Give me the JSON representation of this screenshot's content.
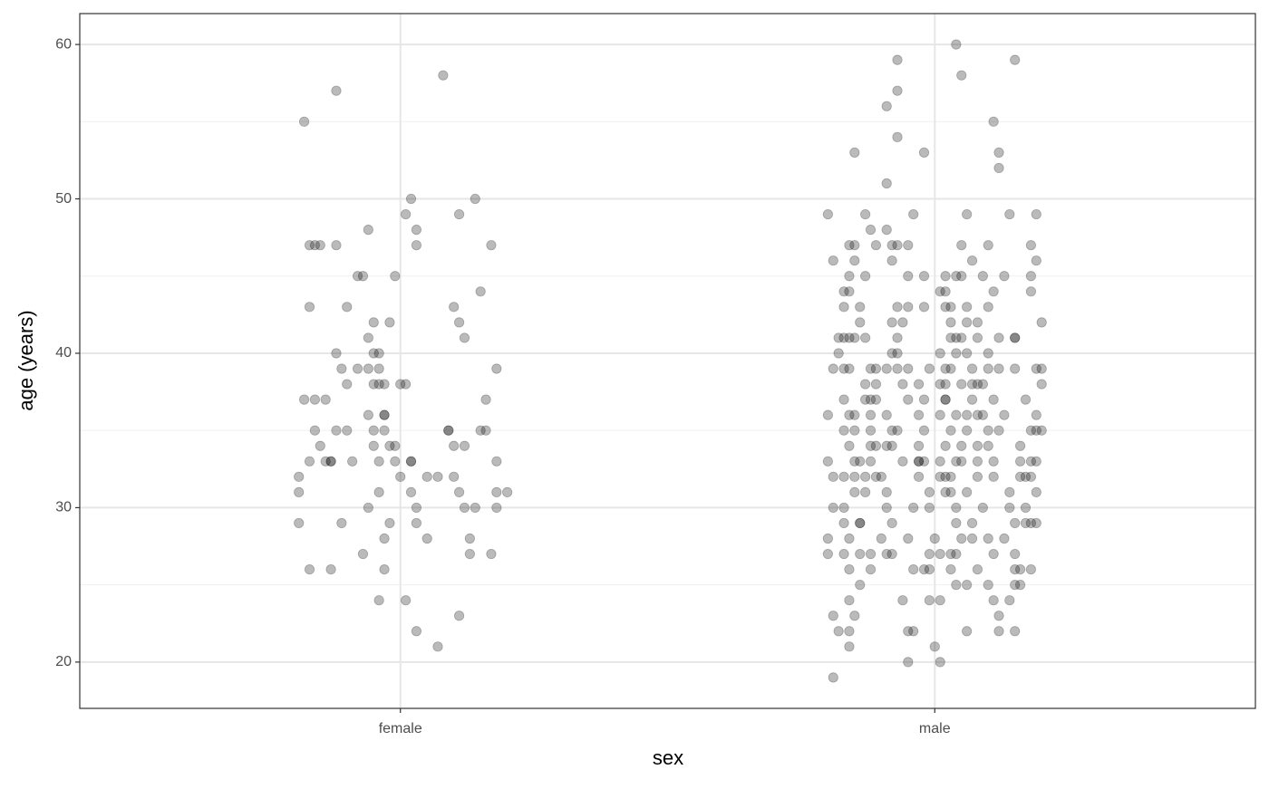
{
  "chart_data": {
    "type": "scatter",
    "x_label": "sex",
    "y_label": "age (years)",
    "xlim": [
      0.4,
      2.6
    ],
    "xticks": [
      {
        "value": 1,
        "label": "female"
      },
      {
        "value": 2,
        "label": "male"
      }
    ],
    "ylim": [
      17,
      62
    ],
    "yticks": [
      20,
      30,
      40,
      50,
      60
    ],
    "y_minor_ticks": [
      25,
      35,
      45,
      55
    ],
    "grid": true,
    "color": "#000000",
    "opacity": 0.27,
    "x": [
      0.82,
      0.88,
      1.08,
      0.83,
      0.84,
      0.85,
      0.88,
      0.83,
      0.9,
      0.94,
      0.92,
      0.93,
      0.99,
      1.02,
      1.01,
      1.03,
      1.03,
      1.14,
      1.11,
      1.17,
      1.15,
      1.1,
      1.11,
      1.12,
      0.95,
      0.98,
      0.94,
      0.88,
      0.95,
      0.96,
      0.89,
      0.92,
      0.94,
      0.96,
      1.18,
      0.82,
      0.84,
      0.86,
      0.9,
      0.95,
      0.96,
      0.97,
      1.0,
      1.01,
      1.16,
      0.94,
      0.97,
      0.97,
      0.84,
      0.88,
      0.9,
      0.95,
      0.97,
      1.09,
      1.09,
      1.15,
      1.16,
      0.85,
      0.95,
      0.98,
      0.99,
      1.1,
      1.12,
      0.83,
      0.86,
      0.87,
      0.87,
      0.91,
      0.96,
      0.99,
      1.02,
      1.02,
      1.18,
      0.81,
      1.0,
      1.05,
      1.07,
      1.1,
      0.81,
      0.96,
      1.02,
      1.11,
      1.18,
      1.2,
      0.94,
      1.03,
      1.12,
      1.14,
      1.18,
      0.81,
      0.89,
      0.98,
      1.03,
      1.05,
      0.97,
      1.13,
      0.93,
      1.13,
      1.17,
      0.83,
      0.87,
      0.97,
      0.96,
      1.01,
      1.11,
      1.03,
      1.07,
      2.04,
      1.93,
      2.15,
      2.05,
      1.93,
      1.91,
      2.11,
      1.93,
      1.85,
      1.98,
      2.12,
      2.12,
      1.91,
      1.8,
      1.87,
      1.96,
      2.06,
      2.14,
      2.19,
      1.88,
      1.91,
      1.84,
      1.85,
      1.89,
      1.92,
      1.93,
      1.95,
      2.05,
      2.1,
      2.18,
      1.81,
      1.85,
      1.92,
      2.07,
      2.19,
      1.84,
      1.87,
      1.95,
      1.98,
      2.02,
      2.04,
      2.05,
      2.09,
      2.13,
      2.18,
      1.83,
      1.84,
      2.01,
      2.02,
      2.11,
      2.18,
      1.83,
      1.86,
      1.93,
      1.95,
      1.98,
      2.02,
      2.03,
      2.06,
      2.1,
      1.86,
      1.92,
      1.94,
      2.03,
      2.06,
      2.08,
      2.2,
      1.82,
      1.83,
      1.84,
      1.85,
      1.87,
      1.93,
      2.03,
      2.04,
      2.05,
      2.08,
      2.12,
      2.15,
      2.15,
      1.82,
      1.92,
      1.93,
      2.01,
      2.04,
      2.06,
      2.1,
      1.81,
      1.83,
      1.84,
      1.88,
      1.89,
      1.91,
      1.93,
      1.95,
      1.99,
      2.02,
      2.03,
      2.07,
      2.1,
      2.12,
      2.15,
      2.19,
      2.2,
      1.87,
      1.89,
      1.94,
      1.97,
      2.01,
      2.02,
      2.05,
      2.07,
      2.08,
      2.09,
      2.2,
      1.83,
      1.87,
      1.88,
      1.89,
      1.95,
      1.98,
      2.02,
      2.02,
      2.07,
      2.11,
      2.17,
      1.8,
      1.84,
      1.85,
      1.88,
      1.91,
      1.97,
      2.01,
      2.04,
      2.06,
      2.08,
      2.09,
      2.13,
      2.19,
      1.83,
      1.85,
      1.88,
      1.92,
      1.93,
      1.98,
      2.03,
      2.06,
      2.1,
      2.12,
      2.18,
      2.19,
      2.2,
      1.84,
      1.88,
      1.89,
      1.91,
      1.92,
      1.97,
      2.02,
      2.05,
      2.08,
      2.1,
      2.16,
      1.8,
      1.85,
      1.86,
      1.88,
      1.94,
      1.97,
      1.97,
      1.98,
      2.01,
      2.04,
      2.05,
      2.08,
      2.11,
      2.16,
      2.18,
      2.19,
      1.81,
      1.83,
      1.85,
      1.87,
      1.89,
      1.9,
      1.97,
      2.01,
      2.02,
      2.03,
      2.08,
      2.11,
      2.16,
      2.17,
      2.18,
      1.85,
      1.87,
      1.91,
      1.99,
      2.02,
      2.03,
      2.06,
      2.14,
      2.19,
      1.81,
      1.83,
      1.91,
      1.96,
      1.99,
      2.04,
      2.09,
      2.14,
      2.17,
      1.83,
      1.86,
      1.86,
      1.92,
      2.04,
      2.07,
      2.15,
      2.17,
      2.18,
      2.19,
      1.8,
      1.84,
      1.9,
      1.95,
      2.0,
      2.05,
      2.07,
      2.1,
      2.13,
      1.8,
      1.83,
      1.86,
      1.88,
      1.91,
      1.92,
      1.99,
      2.01,
      2.03,
      2.04,
      2.11,
      2.15,
      1.84,
      1.88,
      1.96,
      1.98,
      1.99,
      2.03,
      2.08,
      2.15,
      2.16,
      2.18,
      1.86,
      2.04,
      2.06,
      2.1,
      2.15,
      2.16,
      1.84,
      1.94,
      1.99,
      2.01,
      2.11,
      2.14,
      1.81,
      1.85,
      2.12,
      1.82,
      1.84,
      1.95,
      1.96,
      2.06,
      2.12,
      2.15,
      1.84,
      2.0,
      1.95,
      2.01,
      1.81
    ],
    "values": [
      55,
      57,
      58,
      47,
      47,
      47,
      47,
      43,
      43,
      48,
      45,
      45,
      45,
      50,
      49,
      48,
      47,
      50,
      49,
      47,
      44,
      43,
      42,
      41,
      42,
      42,
      41,
      40,
      40,
      40,
      39,
      39,
      39,
      39,
      39,
      37,
      37,
      37,
      38,
      38,
      38,
      38,
      38,
      38,
      37,
      36,
      36,
      36,
      35,
      35,
      35,
      35,
      35,
      35,
      35,
      35,
      35,
      34,
      34,
      34,
      34,
      34,
      34,
      33,
      33,
      33,
      33,
      33,
      33,
      33,
      33,
      33,
      33,
      32,
      32,
      32,
      32,
      32,
      31,
      31,
      31,
      31,
      31,
      31,
      30,
      30,
      30,
      30,
      30,
      29,
      29,
      29,
      29,
      28,
      28,
      28,
      27,
      27,
      27,
      26,
      26,
      26,
      24,
      24,
      23,
      22,
      21,
      60,
      59,
      59,
      58,
      57,
      56,
      55,
      54,
      53,
      53,
      53,
      52,
      51,
      49,
      49,
      49,
      49,
      49,
      49,
      48,
      48,
      47,
      47,
      47,
      47,
      47,
      47,
      47,
      47,
      47,
      46,
      46,
      46,
      46,
      46,
      45,
      45,
      45,
      45,
      45,
      45,
      45,
      45,
      45,
      45,
      44,
      44,
      44,
      44,
      44,
      44,
      43,
      43,
      43,
      43,
      43,
      43,
      43,
      43,
      43,
      42,
      42,
      42,
      42,
      42,
      42,
      42,
      41,
      41,
      41,
      41,
      41,
      41,
      41,
      41,
      41,
      41,
      41,
      41,
      41,
      40,
      40,
      40,
      40,
      40,
      40,
      40,
      39,
      39,
      39,
      39,
      39,
      39,
      39,
      39,
      39,
      39,
      39,
      39,
      39,
      39,
      39,
      39,
      39,
      38,
      38,
      38,
      38,
      38,
      38,
      38,
      38,
      38,
      38,
      38,
      37,
      37,
      37,
      37,
      37,
      37,
      37,
      37,
      37,
      37,
      37,
      36,
      36,
      36,
      36,
      36,
      36,
      36,
      36,
      36,
      36,
      36,
      36,
      36,
      35,
      35,
      35,
      35,
      35,
      35,
      35,
      35,
      35,
      35,
      35,
      35,
      35,
      34,
      34,
      34,
      34,
      34,
      34,
      34,
      34,
      34,
      34,
      34,
      33,
      33,
      33,
      33,
      33,
      33,
      33,
      33,
      33,
      33,
      33,
      33,
      33,
      33,
      33,
      33,
      32,
      32,
      32,
      32,
      32,
      32,
      32,
      32,
      32,
      32,
      32,
      32,
      32,
      32,
      32,
      31,
      31,
      31,
      31,
      31,
      31,
      31,
      31,
      31,
      30,
      30,
      30,
      30,
      30,
      30,
      30,
      30,
      30,
      29,
      29,
      29,
      29,
      29,
      29,
      29,
      29,
      29,
      29,
      28,
      28,
      28,
      28,
      28,
      28,
      28,
      28,
      28,
      27,
      27,
      27,
      27,
      27,
      27,
      27,
      27,
      27,
      27,
      27,
      27,
      26,
      26,
      26,
      26,
      26,
      26,
      26,
      26,
      26,
      26,
      25,
      25,
      25,
      25,
      25,
      25,
      24,
      24,
      24,
      24,
      24,
      24,
      23,
      23,
      23,
      22,
      22,
      22,
      22,
      22,
      22,
      22,
      21,
      21,
      20,
      20,
      19
    ]
  }
}
